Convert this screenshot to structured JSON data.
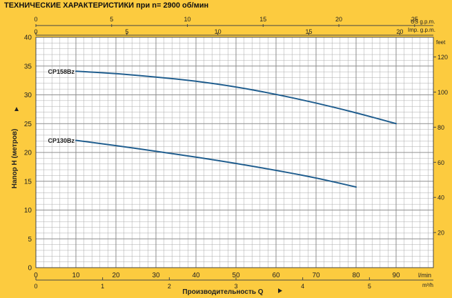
{
  "page_title": "ТЕХНИЧЕСКИЕ ХАРАКТЕРИСТИКИ при n= 2900 об/мин",
  "colors": {
    "background": "#FCCB3F",
    "plot": "#FFFFFF",
    "grid": "#A8A8A8",
    "curve": "#1F5D8E"
  },
  "chart_data": {
    "type": "line",
    "title": "ТЕХНИЧЕСКИЕ ХАРАКТЕРИСТИКИ при n= 2900 об/мин",
    "ylabel": "Напор H  (метров)",
    "xlabel": "Производительность Q",
    "grid": true,
    "x_unit": "l/min",
    "xlim": [
      0,
      100
    ],
    "ylim": [
      0,
      40
    ],
    "x_ticks": [
      0,
      10,
      20,
      30,
      40,
      50,
      60,
      70,
      80,
      90
    ],
    "y_ticks": [
      0,
      5,
      10,
      15,
      20,
      25,
      30,
      35,
      40
    ],
    "secondary_axes": {
      "feet": {
        "unit": "feet",
        "ticks": [
          20,
          40,
          60,
          80,
          100,
          120
        ]
      },
      "us_gpm": {
        "unit": "US g.p.m.",
        "ticks": [
          0,
          5,
          10,
          15,
          20,
          25
        ]
      },
      "imp_gpm": {
        "unit": "Imp. g.p.m.",
        "ticks": [
          0,
          5,
          10,
          15,
          20
        ]
      },
      "m3h": {
        "unit": "m³/h",
        "ticks": [
          0,
          1,
          2,
          3,
          4,
          5
        ]
      }
    },
    "series": [
      {
        "name": "CP158Bz",
        "x": [
          10,
          20,
          30,
          40,
          50,
          60,
          70,
          80,
          90
        ],
        "y": [
          34.1,
          33.7,
          33.1,
          32.4,
          31.4,
          30.1,
          28.6,
          26.9,
          25.0
        ]
      },
      {
        "name": "CP130Bz",
        "x": [
          10,
          20,
          30,
          40,
          50,
          60,
          70,
          80
        ],
        "y": [
          22.1,
          21.2,
          20.2,
          19.2,
          18.1,
          16.9,
          15.6,
          14.0
        ]
      }
    ]
  }
}
